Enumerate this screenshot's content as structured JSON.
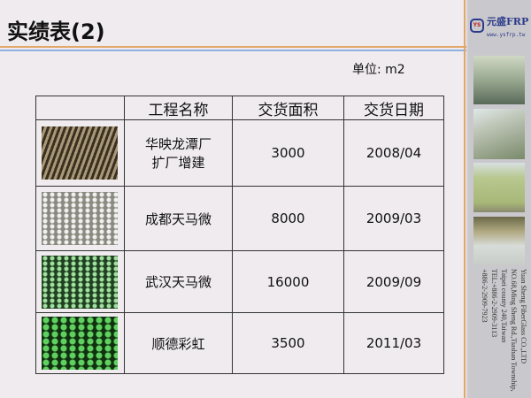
{
  "title": "实绩表(2)",
  "logo": {
    "mark": "YS",
    "name": "元盛FRP",
    "url": "www.ysfrp.tw"
  },
  "unit_label": "单位: m2",
  "table": {
    "headers": [
      "",
      "工程名称",
      "交货面积",
      "交货日期"
    ],
    "rows": [
      {
        "name_l1": "华映龙潭厂",
        "name_l2": "扩厂增建",
        "area": "3000",
        "date": "2008/04"
      },
      {
        "name_l1": "成都天马微",
        "name_l2": "",
        "area": "8000",
        "date": "2009/03"
      },
      {
        "name_l1": "武汉天马微",
        "name_l2": "",
        "area": "16000",
        "date": "2009/09"
      },
      {
        "name_l1": "顺德彩虹",
        "name_l2": "",
        "area": "3500",
        "date": "2011/03"
      }
    ]
  },
  "address": [
    "Yuan Sheng FiberGlass CO.,LTD",
    "NO.68,Ming Sheng Rd.,Tiashan Township,",
    "Taipei county 240,Taiwan",
    "TEL:+886-2-2909-3113",
    "+886-2-2909-7923"
  ],
  "colors": {
    "accent_orange": "#e0a868",
    "accent_blue": "#8fb0e0",
    "brand": "#2a3a8a"
  }
}
